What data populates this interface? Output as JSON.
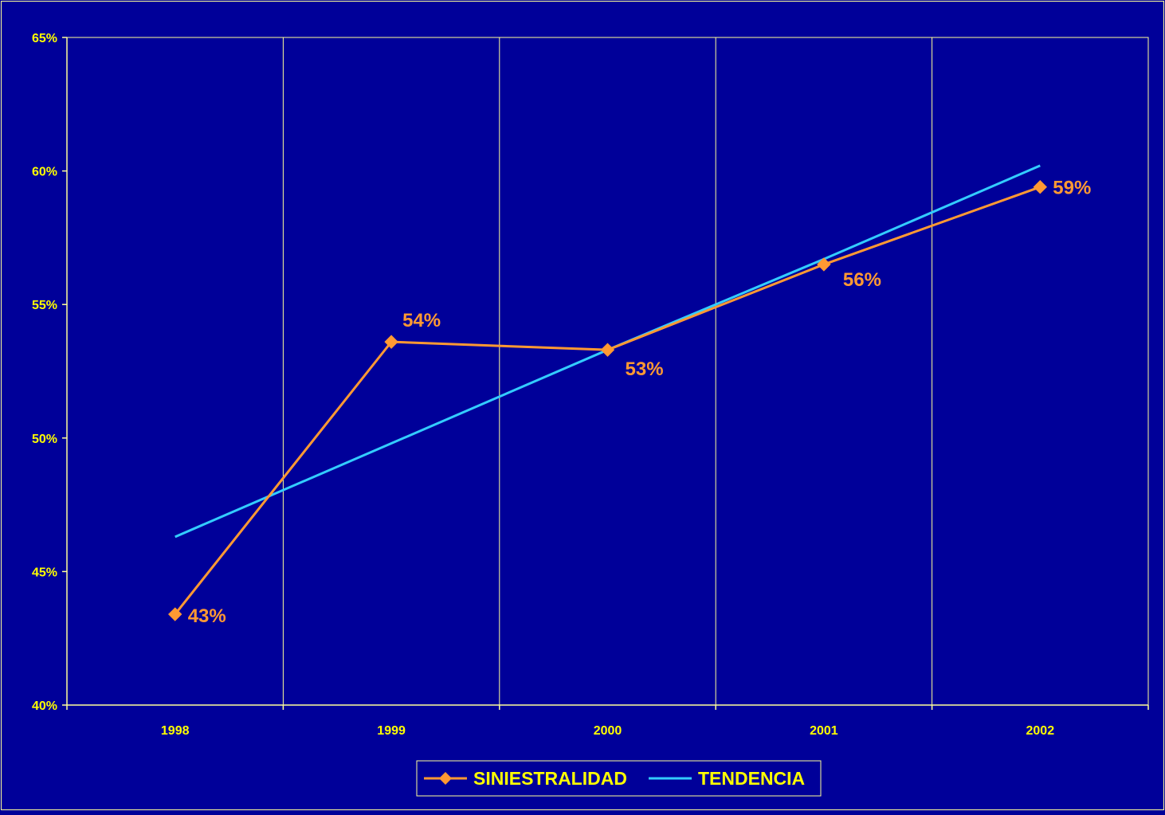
{
  "chart_data": {
    "type": "line",
    "categories": [
      "1998",
      "1999",
      "2000",
      "2001",
      "2002"
    ],
    "series": [
      {
        "name": "SINIESTRALIDAD",
        "values": [
          43.4,
          53.6,
          53.3,
          56.5,
          59.4
        ],
        "data_labels": [
          "43%",
          "54%",
          "53%",
          "56%",
          "59%"
        ],
        "color": "#FF9933",
        "marker": "diamond"
      },
      {
        "name": "TENDENCIA",
        "values": [
          46.3,
          49.8,
          53.3,
          56.7,
          60.2
        ],
        "color": "#33CCFF",
        "marker": "none"
      }
    ],
    "ylim": [
      40,
      65
    ],
    "yticks": [
      40,
      45,
      50,
      55,
      60,
      65
    ],
    "ytick_labels": [
      "40%",
      "45%",
      "50%",
      "55%",
      "60%",
      "65%"
    ],
    "grid": "vertical",
    "legend": "bottom-center",
    "colors": {
      "background": "#000099",
      "axis": "#FFFF99",
      "text": "#FFFF00"
    }
  }
}
